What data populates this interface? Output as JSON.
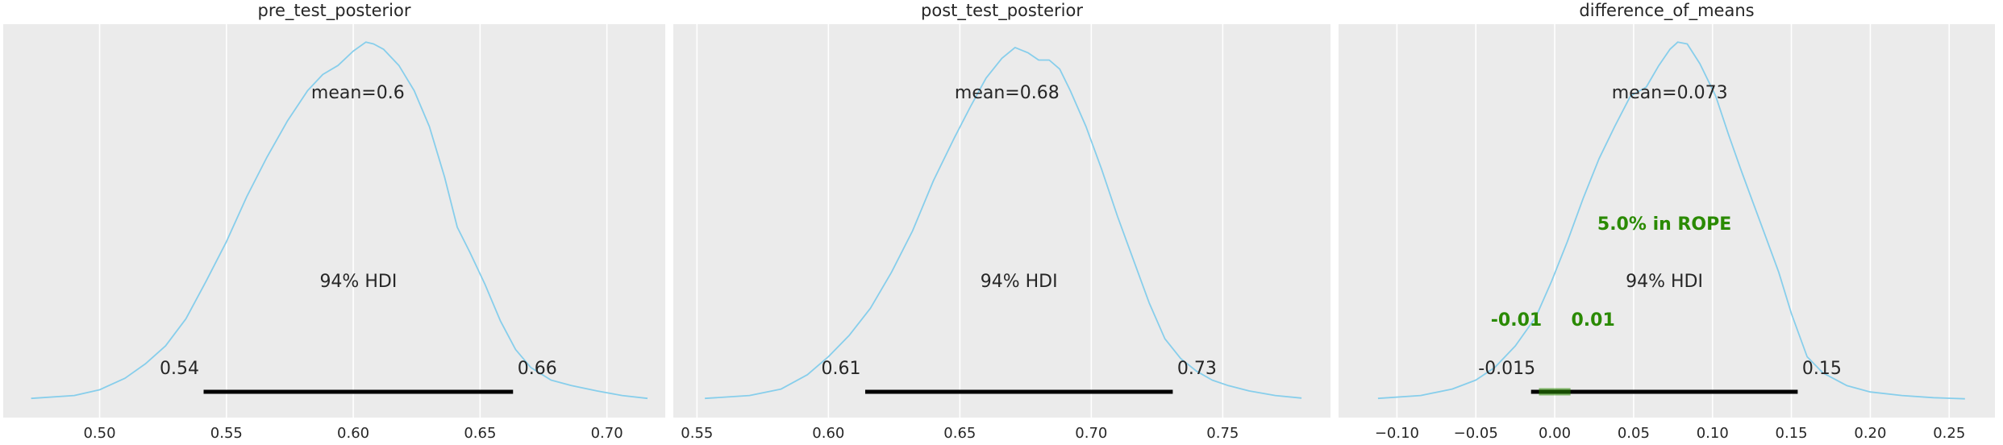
{
  "chart_data": [
    {
      "type": "density",
      "title": "pre_test_posterior",
      "xlim": [
        0.462,
        0.723
      ],
      "xticks": [
        0.5,
        0.55,
        0.6,
        0.65,
        0.7
      ],
      "xtick_labels": [
        "0.50",
        "0.55",
        "0.60",
        "0.65",
        "0.70"
      ],
      "grid": true,
      "line_color": "#87ceeb",
      "density": {
        "x": [
          0.473,
          0.49,
          0.5,
          0.51,
          0.518,
          0.526,
          0.534,
          0.542,
          0.55,
          0.558,
          0.566,
          0.574,
          0.582,
          0.588,
          0.594,
          0.6,
          0.605,
          0.608,
          0.612,
          0.618,
          0.624,
          0.63,
          0.636,
          0.641,
          0.646,
          0.652,
          0.658,
          0.664,
          0.67,
          0.678,
          0.686,
          0.696,
          0.706,
          0.716
        ],
        "y": [
          0.004,
          0.012,
          0.028,
          0.06,
          0.1,
          0.15,
          0.225,
          0.33,
          0.44,
          0.565,
          0.675,
          0.775,
          0.86,
          0.905,
          0.93,
          0.97,
          0.995,
          0.99,
          0.975,
          0.93,
          0.86,
          0.76,
          0.62,
          0.48,
          0.41,
          0.32,
          0.22,
          0.14,
          0.09,
          0.055,
          0.04,
          0.025,
          0.012,
          0.004
        ]
      },
      "mean_label": "mean=0.6",
      "hdi_label": "94% HDI",
      "hdi": [
        0.541,
        0.663
      ],
      "hdi_low_label": "0.54",
      "hdi_high_label": "0.66"
    },
    {
      "type": "density",
      "title": "post_test_posterior",
      "xlim": [
        0.541,
        0.791
      ],
      "xticks": [
        0.55,
        0.6,
        0.65,
        0.7,
        0.75
      ],
      "xtick_labels": [
        "0.55",
        "0.60",
        "0.65",
        "0.70",
        "0.75"
      ],
      "grid": true,
      "line_color": "#87ceeb",
      "density": {
        "x": [
          0.553,
          0.57,
          0.582,
          0.592,
          0.6,
          0.608,
          0.616,
          0.624,
          0.632,
          0.64,
          0.648,
          0.654,
          0.66,
          0.666,
          0.671,
          0.676,
          0.68,
          0.684,
          0.688,
          0.692,
          0.698,
          0.704,
          0.71,
          0.716,
          0.722,
          0.728,
          0.734,
          0.74,
          0.746,
          0.752,
          0.76,
          0.77,
          0.78
        ],
        "y": [
          0.004,
          0.012,
          0.03,
          0.07,
          0.12,
          0.18,
          0.255,
          0.355,
          0.47,
          0.61,
          0.73,
          0.815,
          0.895,
          0.95,
          0.98,
          0.965,
          0.945,
          0.945,
          0.92,
          0.86,
          0.76,
          0.64,
          0.51,
          0.39,
          0.27,
          0.17,
          0.115,
          0.08,
          0.055,
          0.04,
          0.025,
          0.012,
          0.005
        ]
      },
      "mean_label": "mean=0.68",
      "hdi_label": "94% HDI",
      "hdi": [
        0.614,
        0.731
      ],
      "hdi_low_label": "0.61",
      "hdi_high_label": "0.73"
    },
    {
      "type": "density",
      "title": "difference_of_means",
      "xlim": [
        -0.137,
        0.279
      ],
      "xticks": [
        -0.1,
        -0.05,
        0.0,
        0.05,
        0.1,
        0.15,
        0.2,
        0.25
      ],
      "xtick_labels": [
        "−0.10",
        "−0.05",
        "0.00",
        "0.05",
        "0.10",
        "0.15",
        "0.20",
        "0.25"
      ],
      "grid": true,
      "line_color": "#87ceeb",
      "density": {
        "x": [
          -0.112,
          -0.085,
          -0.065,
          -0.05,
          -0.038,
          -0.025,
          -0.012,
          -0.002,
          0.008,
          0.018,
          0.028,
          0.038,
          0.048,
          0.058,
          0.066,
          0.073,
          0.078,
          0.084,
          0.092,
          0.102,
          0.11,
          0.118,
          0.126,
          0.134,
          0.142,
          0.15,
          0.16,
          0.17,
          0.185,
          0.2,
          0.22,
          0.24,
          0.26
        ],
        "y": [
          0.004,
          0.012,
          0.03,
          0.055,
          0.09,
          0.15,
          0.23,
          0.33,
          0.44,
          0.56,
          0.67,
          0.76,
          0.845,
          0.87,
          0.93,
          0.975,
          0.995,
          0.99,
          0.935,
          0.845,
          0.74,
          0.64,
          0.545,
          0.45,
          0.355,
          0.24,
          0.12,
          0.075,
          0.04,
          0.022,
          0.012,
          0.006,
          0.003
        ]
      },
      "mean_label": "mean=0.073",
      "hdi_label": "94% HDI",
      "hdi": [
        -0.015,
        0.154
      ],
      "hdi_low_label": "-0.015",
      "hdi_high_label": "0.15",
      "rope": [
        -0.01,
        0.01
      ],
      "rope_label": "5.0% in ROPE",
      "rope_low_label": "-0.01",
      "rope_high_label": "0.01",
      "rope_color": "#2a8a00"
    }
  ]
}
